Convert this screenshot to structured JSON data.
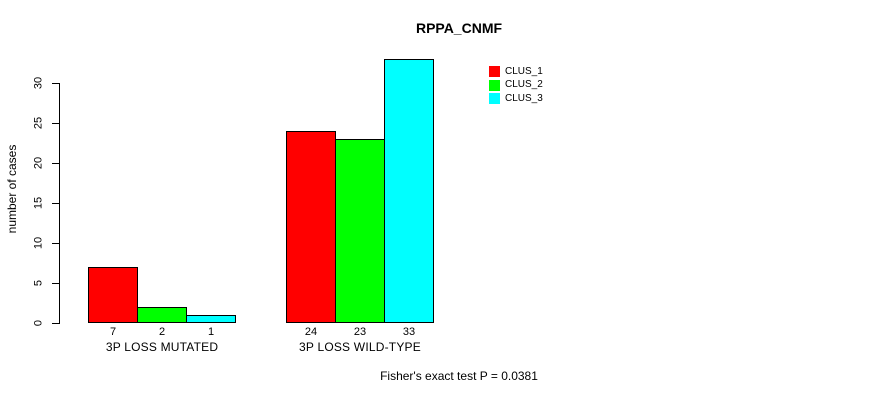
{
  "chart_data": {
    "type": "bar",
    "title": "RPPA_CNMF",
    "xlabel": "",
    "ylabel": "number of cases",
    "ylim": [
      0,
      33
    ],
    "yticks": [
      0,
      5,
      10,
      15,
      20,
      25,
      30
    ],
    "grid": false,
    "legend_position": "top-right-outside",
    "categories": [
      "3P LOSS MUTATED",
      "3P LOSS WILD-TYPE"
    ],
    "series": [
      {
        "name": "CLUS_1",
        "color": "#ff0000",
        "values": [
          7,
          24
        ]
      },
      {
        "name": "CLUS_2",
        "color": "#00ff00",
        "values": [
          2,
          23
        ]
      },
      {
        "name": "CLUS_3",
        "color": "#00ffff",
        "values": [
          1,
          33
        ]
      }
    ],
    "bar_value_labels": [
      [
        7,
        2,
        1
      ],
      [
        24,
        23,
        33
      ]
    ],
    "annotation": "Fisher's exact test P = 0.0381",
    "colors": {
      "background": "#ffffff",
      "axis": "#000000",
      "bar_border": "#000000"
    }
  }
}
